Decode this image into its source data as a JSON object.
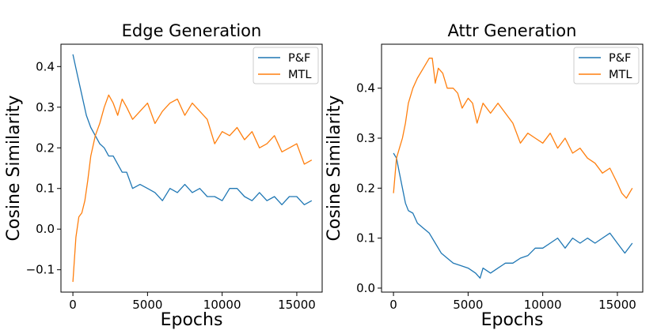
{
  "chart_data": [
    {
      "type": "line",
      "title": "Edge Generation",
      "xlabel": "Epochs",
      "ylabel": "Cosine Similarity",
      "xlim": [
        -800,
        16700
      ],
      "ylim": [
        -0.155,
        0.455
      ],
      "xticks": [
        0,
        5000,
        10000,
        15000
      ],
      "xtick_labels": [
        "0",
        "5000",
        "10000",
        "15000"
      ],
      "yticks": [
        -0.1,
        0.0,
        0.1,
        0.2,
        0.3,
        0.4
      ],
      "ytick_labels": [
        "−0.1",
        "0.0",
        "0.1",
        "0.2",
        "0.3",
        "0.4"
      ],
      "legend_position": "top-right",
      "series": [
        {
          "name": "P&F",
          "color": "#1f77b4",
          "x": [
            0,
            300,
            600,
            900,
            1200,
            1500,
            1800,
            2100,
            2400,
            2700,
            3000,
            3300,
            3600,
            4000,
            4500,
            5000,
            5500,
            6000,
            6500,
            7000,
            7500,
            8000,
            8500,
            9000,
            9500,
            10000,
            10500,
            11000,
            11500,
            12000,
            12500,
            13000,
            13500,
            14000,
            14500,
            15000,
            15500,
            16000
          ],
          "y": [
            0.43,
            0.38,
            0.33,
            0.28,
            0.25,
            0.23,
            0.21,
            0.2,
            0.18,
            0.18,
            0.16,
            0.14,
            0.14,
            0.1,
            0.11,
            0.1,
            0.09,
            0.07,
            0.1,
            0.09,
            0.11,
            0.09,
            0.1,
            0.08,
            0.08,
            0.07,
            0.1,
            0.1,
            0.08,
            0.07,
            0.09,
            0.07,
            0.08,
            0.06,
            0.08,
            0.08,
            0.06,
            0.07
          ]
        },
        {
          "name": "MTL",
          "color": "#ff7f0e",
          "x": [
            0,
            200,
            400,
            600,
            800,
            1000,
            1200,
            1500,
            1800,
            2100,
            2400,
            2700,
            3000,
            3300,
            3600,
            4000,
            4500,
            5000,
            5500,
            6000,
            6500,
            7000,
            7500,
            8000,
            8500,
            9000,
            9500,
            10000,
            10500,
            11000,
            11500,
            12000,
            12500,
            13000,
            13500,
            14000,
            14500,
            15000,
            15500,
            16000
          ],
          "y": [
            -0.13,
            -0.02,
            0.03,
            0.04,
            0.07,
            0.12,
            0.18,
            0.23,
            0.26,
            0.3,
            0.33,
            0.31,
            0.28,
            0.32,
            0.3,
            0.27,
            0.29,
            0.31,
            0.26,
            0.29,
            0.31,
            0.32,
            0.28,
            0.31,
            0.29,
            0.27,
            0.21,
            0.24,
            0.23,
            0.25,
            0.22,
            0.24,
            0.2,
            0.21,
            0.23,
            0.19,
            0.2,
            0.21,
            0.16,
            0.17
          ]
        }
      ]
    },
    {
      "type": "line",
      "title": "Attr Generation",
      "xlabel": "Epochs",
      "ylabel": "Cosine Similarity",
      "xlim": [
        -800,
        16700
      ],
      "ylim": [
        -0.008,
        0.488
      ],
      "xticks": [
        0,
        5000,
        10000,
        15000
      ],
      "xtick_labels": [
        "0",
        "5000",
        "10000",
        "15000"
      ],
      "yticks": [
        0.0,
        0.1,
        0.2,
        0.3,
        0.4
      ],
      "ytick_labels": [
        "0.0",
        "0.1",
        "0.2",
        "0.3",
        "0.4"
      ],
      "legend_position": "top-right",
      "series": [
        {
          "name": "P&F",
          "color": "#1f77b4",
          "x": [
            0,
            200,
            400,
            600,
            800,
            1000,
            1300,
            1600,
            2000,
            2400,
            2800,
            3200,
            3600,
            4000,
            4500,
            5000,
            5500,
            5800,
            6000,
            6500,
            7000,
            7500,
            8000,
            8500,
            9000,
            9500,
            10000,
            10500,
            11000,
            11500,
            12000,
            12500,
            13000,
            13500,
            14000,
            14500,
            15000,
            15500,
            16000
          ],
          "y": [
            0.27,
            0.26,
            0.23,
            0.2,
            0.17,
            0.155,
            0.15,
            0.13,
            0.12,
            0.11,
            0.09,
            0.07,
            0.06,
            0.05,
            0.045,
            0.04,
            0.03,
            0.02,
            0.04,
            0.03,
            0.04,
            0.05,
            0.05,
            0.06,
            0.065,
            0.08,
            0.08,
            0.09,
            0.1,
            0.08,
            0.1,
            0.09,
            0.1,
            0.09,
            0.1,
            0.11,
            0.09,
            0.07,
            0.09
          ]
        },
        {
          "name": "MTL",
          "color": "#ff7f0e",
          "x": [
            0,
            200,
            400,
            600,
            800,
            1000,
            1300,
            1600,
            2000,
            2400,
            2600,
            2800,
            3000,
            3300,
            3600,
            4000,
            4300,
            4600,
            5000,
            5300,
            5600,
            6000,
            6500,
            7000,
            7500,
            8000,
            8500,
            9000,
            9500,
            10000,
            10500,
            11000,
            11500,
            12000,
            12500,
            13000,
            13500,
            14000,
            14500,
            15000,
            15300,
            15600,
            16000
          ],
          "y": [
            0.19,
            0.26,
            0.28,
            0.3,
            0.33,
            0.37,
            0.4,
            0.42,
            0.44,
            0.46,
            0.46,
            0.41,
            0.44,
            0.43,
            0.4,
            0.4,
            0.39,
            0.36,
            0.38,
            0.37,
            0.33,
            0.37,
            0.35,
            0.37,
            0.35,
            0.33,
            0.29,
            0.31,
            0.3,
            0.29,
            0.31,
            0.28,
            0.3,
            0.27,
            0.28,
            0.26,
            0.25,
            0.23,
            0.24,
            0.21,
            0.19,
            0.18,
            0.2
          ]
        }
      ]
    }
  ]
}
